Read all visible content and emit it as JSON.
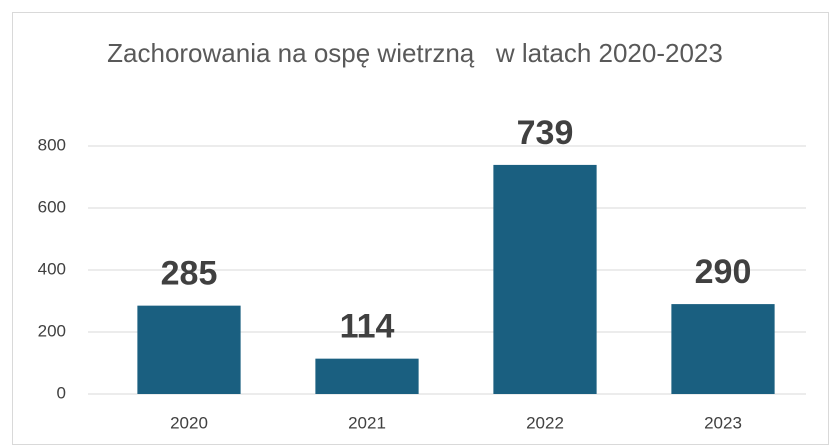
{
  "chart_data": {
    "type": "bar",
    "title": "Zachorowania na ospę wietrzną   w latach 2020-2023",
    "categories": [
      "2020",
      "2021",
      "2022",
      "2023"
    ],
    "values": [
      285,
      114,
      739,
      290
    ],
    "color": "#1a5f80",
    "ylim": [
      0,
      800
    ],
    "yticks": [
      0,
      200,
      400,
      600,
      800
    ],
    "grid": true
  }
}
